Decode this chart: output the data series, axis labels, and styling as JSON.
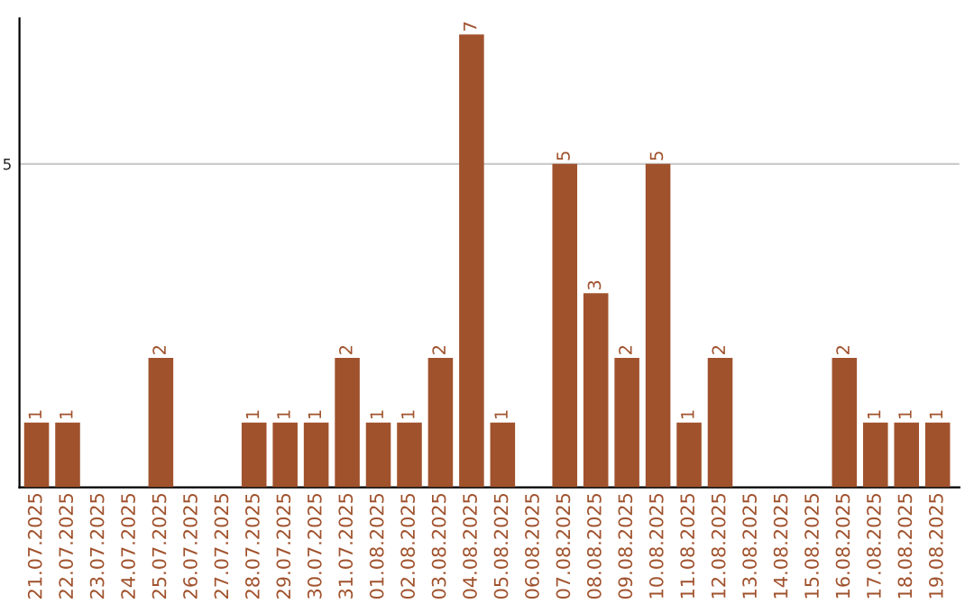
{
  "chart_data": {
    "type": "bar",
    "categories": [
      "21.07.2025",
      "22.07.2025",
      "23.07.2025",
      "24.07.2025",
      "25.07.2025",
      "26.07.2025",
      "27.07.2025",
      "28.07.2025",
      "29.07.2025",
      "30.07.2025",
      "31.07.2025",
      "01.08.2025",
      "02.08.2025",
      "03.08.2025",
      "04.08.2025",
      "05.08.2025",
      "06.08.2025",
      "07.08.2025",
      "08.08.2025",
      "09.08.2025",
      "10.08.2025",
      "11.08.2025",
      "12.08.2025",
      "13.08.2025",
      "14.08.2025",
      "15.08.2025",
      "16.08.2025",
      "17.08.2025",
      "18.08.2025",
      "19.08.2025"
    ],
    "values": [
      1,
      1,
      0,
      0,
      2,
      0,
      0,
      1,
      1,
      1,
      2,
      1,
      1,
      2,
      7,
      1,
      0,
      5,
      3,
      2,
      5,
      1,
      2,
      0,
      0,
      0,
      2,
      1,
      1,
      1
    ],
    "value_labels": [
      "1",
      "1",
      null,
      null,
      "2",
      null,
      null,
      "1",
      "1",
      "1",
      "2",
      "1",
      "1",
      "2",
      "7",
      "1",
      null,
      "5",
      "3",
      "2",
      "5",
      "1",
      "2",
      null,
      null,
      null,
      "2",
      "1",
      "1",
      "1"
    ],
    "color": "#a0522d",
    "ylim": [
      0,
      7.25
    ],
    "yticks": [
      5
    ],
    "grid": "y"
  }
}
